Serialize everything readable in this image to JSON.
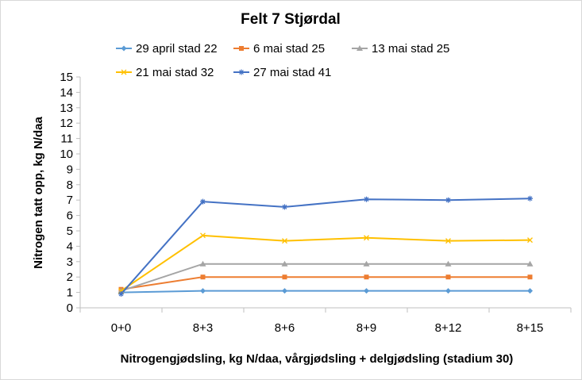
{
  "chart_data": {
    "type": "line",
    "title": "Felt 7 Stjørdal",
    "xlabel": "Nitrogengjødsling, kg N/daa, vårgjødsling + delgjødsling (stadium 30)",
    "ylabel": "Nitrogen tatt opp, kg N/daa",
    "categories": [
      "0+0",
      "8+3",
      "8+6",
      "8+9",
      "8+12",
      "8+15"
    ],
    "ylim": [
      0,
      15
    ],
    "yticks": [
      0,
      1,
      2,
      3,
      4,
      5,
      6,
      7,
      8,
      9,
      10,
      11,
      12,
      13,
      14,
      15
    ],
    "grid": false,
    "legend_position": "top",
    "series": [
      {
        "name": "29 april stad 22",
        "color": "#5b9bd5",
        "marker": "diamond",
        "values": [
          1.0,
          1.1,
          1.1,
          1.1,
          1.1,
          1.1
        ]
      },
      {
        "name": "6 mai stad 25",
        "color": "#ed7d31",
        "marker": "square",
        "values": [
          1.2,
          2.0,
          2.0,
          2.0,
          2.0,
          2.0
        ]
      },
      {
        "name": "13 mai stad 25",
        "color": "#a5a5a5",
        "marker": "triangle",
        "values": [
          1.1,
          2.85,
          2.85,
          2.85,
          2.85,
          2.85
        ]
      },
      {
        "name": "21 mai stad 32",
        "color": "#ffc000",
        "marker": "x",
        "values": [
          1.1,
          4.7,
          4.35,
          4.55,
          4.35,
          4.4
        ]
      },
      {
        "name": "27 mai stad 41",
        "color": "#4472c4",
        "marker": "star",
        "values": [
          0.9,
          6.9,
          6.55,
          7.05,
          7.0,
          7.1
        ]
      }
    ]
  }
}
